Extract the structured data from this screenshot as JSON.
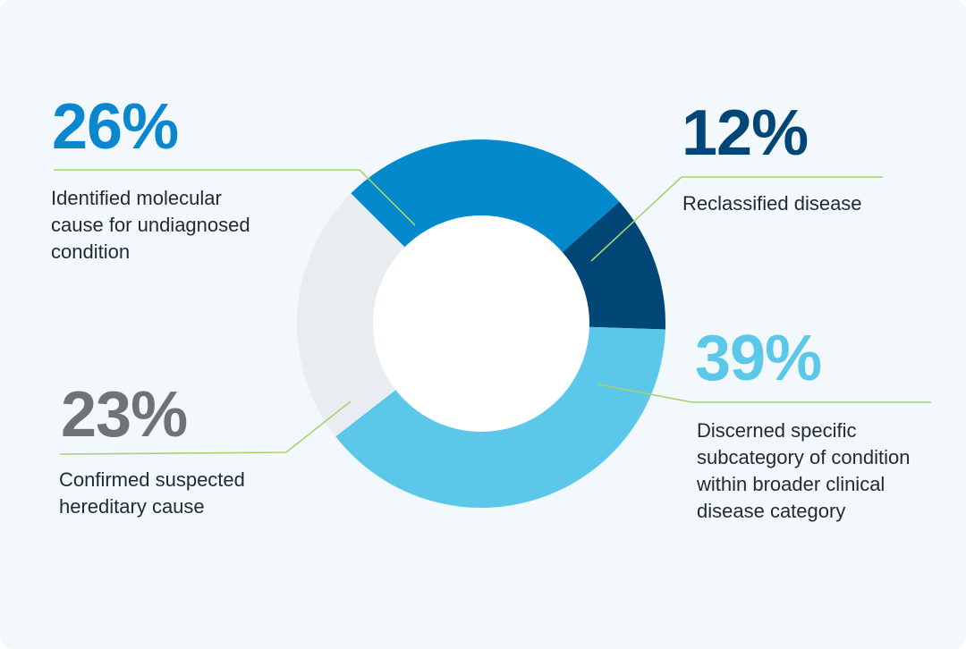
{
  "chart_data": {
    "type": "pie",
    "categories": [
      "Identified molecular cause for undiagnosed condition",
      "Reclassified disease",
      "Discerned specific subcategory of condition within broader clinical disease category",
      "Confirmed suspected hereditary cause"
    ],
    "values": [
      26,
      12,
      39,
      23
    ],
    "value_labels": [
      "26%",
      "12%",
      "39%",
      "23%"
    ],
    "colors": [
      "#0589cd",
      "#004677",
      "#5cc8e9",
      "#e9edf2"
    ],
    "label_colors": [
      "#0a87cf",
      "#004677",
      "#5cc8e9",
      "#6e7377"
    ],
    "donut": true,
    "legend": "none",
    "leader_line_color": "#a8d36a"
  },
  "labels": {
    "molecular": {
      "value": "26%",
      "lines": [
        "Identified molecular",
        "cause for undiagnosed",
        "condition"
      ]
    },
    "reclassified": {
      "value": "12%",
      "lines": [
        "Reclassified disease"
      ]
    },
    "subcategory": {
      "value": "39%",
      "lines": [
        "Discerned specific",
        "subcategory of condition",
        "within broader clinical",
        "disease category"
      ]
    },
    "hereditary": {
      "value": "23%",
      "lines": [
        "Confirmed suspected",
        "hereditary cause"
      ]
    }
  }
}
